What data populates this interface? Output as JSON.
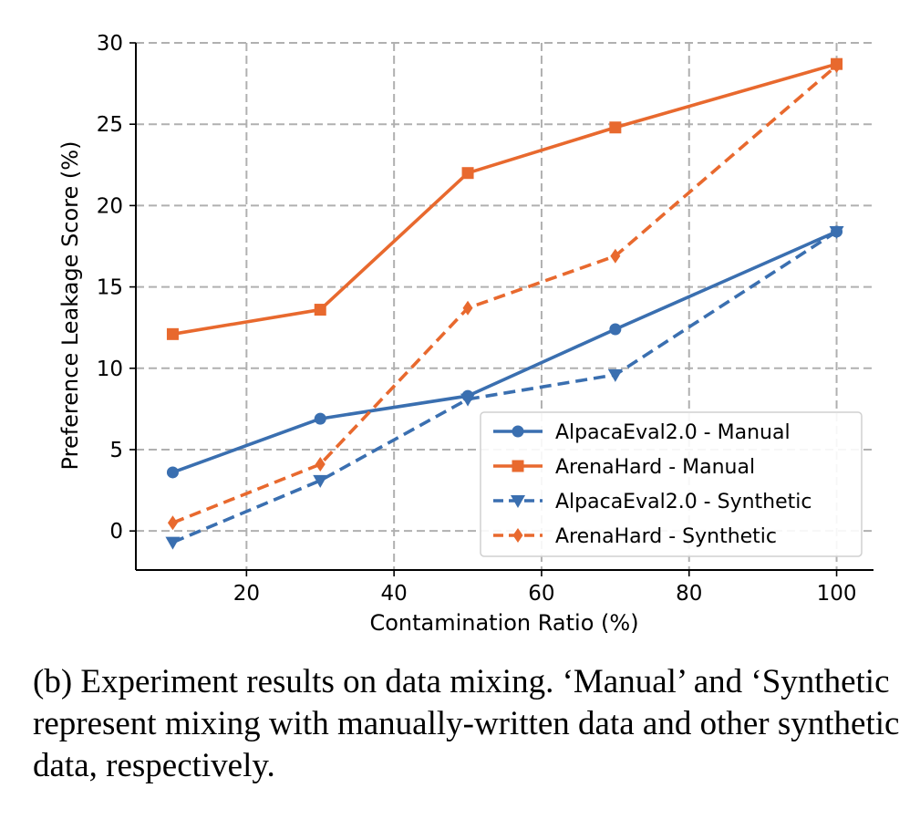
{
  "chart_data": {
    "type": "line",
    "xlabel": "Contamination Ratio (%)",
    "ylabel": "Preference Leakage Score (%)",
    "xlim": [
      5,
      105
    ],
    "ylim": [
      -2.4,
      30
    ],
    "xticks": [
      20,
      40,
      60,
      80,
      100
    ],
    "yticks": [
      0,
      5,
      10,
      15,
      20,
      25,
      30
    ],
    "grid": true,
    "legend_position": "lower-right",
    "series": [
      {
        "name": "AlpacaEval2.0 - Manual",
        "color": "#3a6fb0",
        "dash": "solid",
        "marker": "circle",
        "x": [
          10,
          30,
          50,
          70,
          100
        ],
        "y": [
          3.6,
          6.9,
          8.3,
          12.4,
          18.4
        ]
      },
      {
        "name": "ArenaHard - Manual",
        "color": "#e8692e",
        "dash": "solid",
        "marker": "square",
        "x": [
          10,
          30,
          50,
          70,
          100
        ],
        "y": [
          12.1,
          13.6,
          22.0,
          24.8,
          28.7
        ]
      },
      {
        "name": "AlpacaEval2.0 - Synthetic",
        "color": "#3a6fb0",
        "dash": "dashed",
        "marker": "triangle-down",
        "x": [
          10,
          30,
          50,
          70,
          100
        ],
        "y": [
          -0.7,
          3.1,
          8.1,
          9.6,
          18.4
        ]
      },
      {
        "name": "ArenaHard - Synthetic",
        "color": "#e8692e",
        "dash": "dashed",
        "marker": "diamond",
        "x": [
          10,
          30,
          50,
          70,
          100
        ],
        "y": [
          0.5,
          4.1,
          13.7,
          16.9,
          28.6
        ]
      }
    ]
  },
  "caption": "(b) Experiment results on data mixing. ‘Manual’ and ‘Synthetic represent mixing with manually-written data and other synthetic data, respectively."
}
